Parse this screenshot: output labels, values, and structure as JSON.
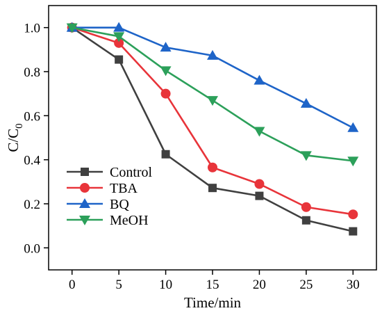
{
  "chart_data": {
    "type": "line",
    "xlabel": "Time/min",
    "ylabel_main": "C/C",
    "ylabel_sub": "0",
    "x": [
      0,
      5,
      10,
      15,
      20,
      25,
      30
    ],
    "xlim": [
      -2.5,
      32.5
    ],
    "ylim": [
      -0.1,
      1.1
    ],
    "xticks": [
      0,
      5,
      10,
      15,
      20,
      25,
      30
    ],
    "yticks": [
      0.0,
      0.2,
      0.4,
      0.6,
      0.8,
      1.0
    ],
    "xtick_labels": [
      "0",
      "5",
      "10",
      "15",
      "20",
      "25",
      "30"
    ],
    "ytick_labels": [
      "0.0",
      "0.2",
      "0.4",
      "0.6",
      "0.8",
      "1.0"
    ],
    "grid": false,
    "legend_position": "bottom-left",
    "series": [
      {
        "name": "Control",
        "color": "#404040",
        "marker": "square",
        "values": [
          1.0,
          0.855,
          0.425,
          0.272,
          0.236,
          0.125,
          0.075
        ]
      },
      {
        "name": "TBA",
        "color": "#e8343a",
        "marker": "circle",
        "values": [
          1.0,
          0.93,
          0.7,
          0.365,
          0.29,
          0.185,
          0.152
        ]
      },
      {
        "name": "BQ",
        "color": "#1e64c8",
        "marker": "triangle-up",
        "values": [
          1.0,
          1.0,
          0.91,
          0.873,
          0.76,
          0.655,
          0.545
        ]
      },
      {
        "name": "MeOH",
        "color": "#2ca05a",
        "marker": "triangle-down",
        "values": [
          1.0,
          0.96,
          0.805,
          0.67,
          0.53,
          0.42,
          0.395
        ]
      }
    ]
  }
}
